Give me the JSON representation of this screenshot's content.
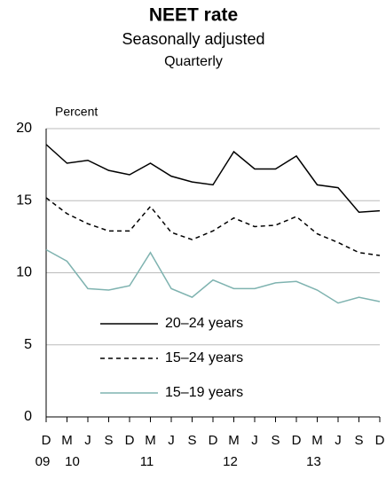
{
  "chart_data": {
    "type": "line",
    "title": "NEET rate",
    "subtitle": "Seasonally adjusted",
    "frequency": "Quarterly",
    "y_unit": "Percent",
    "categories": [
      "D",
      "M",
      "J",
      "S",
      "D",
      "M",
      "J",
      "S",
      "D",
      "M",
      "J",
      "S",
      "D",
      "M",
      "J",
      "S",
      "D"
    ],
    "year_labels": [
      "09",
      "10",
      null,
      null,
      null,
      "11",
      null,
      null,
      null,
      "12",
      null,
      null,
      null,
      "13",
      null,
      null,
      null
    ],
    "series": [
      {
        "name": "20–24 years",
        "color": "#000000",
        "dashed": false,
        "values": [
          18.9,
          17.6,
          17.8,
          17.1,
          16.8,
          17.6,
          16.7,
          16.3,
          16.1,
          18.4,
          17.2,
          17.2,
          18.1,
          16.1,
          15.9,
          14.2,
          14.3
        ]
      },
      {
        "name": "15–24 years",
        "color": "#000000",
        "dashed": true,
        "values": [
          15.2,
          14.1,
          13.4,
          12.9,
          12.9,
          14.6,
          12.8,
          12.3,
          12.9,
          13.8,
          13.2,
          13.3,
          13.9,
          12.7,
          12.1,
          11.4,
          11.2
        ]
      },
      {
        "name": "15–19 years",
        "color": "#7fb3b0",
        "dashed": false,
        "values": [
          11.6,
          10.8,
          8.9,
          8.8,
          9.1,
          11.4,
          8.9,
          8.3,
          9.5,
          8.9,
          8.9,
          9.3,
          9.4,
          8.8,
          7.9,
          8.3,
          8.0
        ]
      }
    ],
    "ylim": [
      0,
      20
    ],
    "yticks": [
      0,
      5,
      10,
      15,
      20
    ],
    "grid": true
  }
}
